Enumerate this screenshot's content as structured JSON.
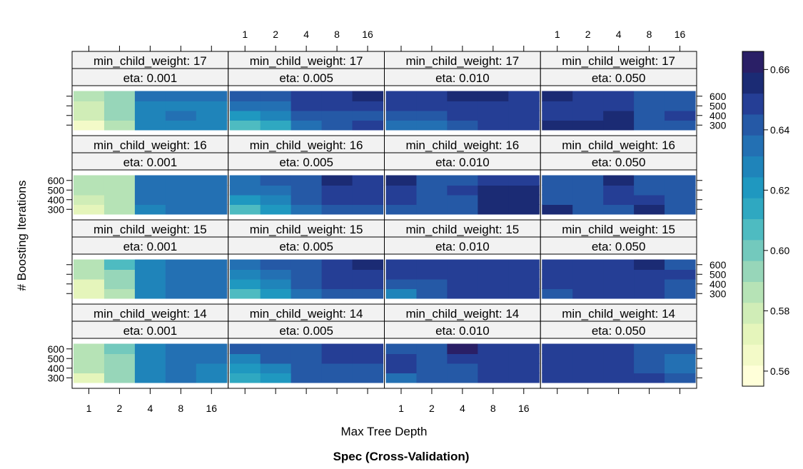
{
  "chart_data": {
    "type": "heatmap",
    "title": "Spec (Cross-Validation)",
    "xlabel": "Max Tree Depth",
    "ylabel": "# Boosting Iterations",
    "x_categories": [
      "1",
      "2",
      "4",
      "8",
      "16"
    ],
    "y_categories": [
      "300",
      "400",
      "500",
      "600"
    ],
    "strip_prefix_weight": "min_child_weight: ",
    "strip_prefix_eta": "eta: ",
    "colorbar": {
      "range": [
        0.555,
        0.666
      ],
      "ticks": [
        0.56,
        0.58,
        0.6,
        0.62,
        0.64,
        0.66
      ],
      "tick_labels": [
        "0.56",
        "0.58",
        "0.60",
        "0.62",
        "0.64",
        "0.66"
      ],
      "colors": [
        "#FFFFD9",
        "#F3FAC8",
        "#E5F5BB",
        "#D0EDB7",
        "#B6E3B6",
        "#97D6B9",
        "#73C9BD",
        "#4EBBC1",
        "#2FA8C1",
        "#1F98C0",
        "#1F84BA",
        "#2370B3",
        "#2559A6",
        "#253E95",
        "#1B2B74",
        "#2A1F66"
      ]
    },
    "panels": [
      {
        "min_child_weight": "17",
        "eta": "0.001",
        "values": [
          [
            0.567,
            0.585,
            0.627,
            0.627,
            0.63
          ],
          [
            0.579,
            0.59,
            0.627,
            0.637,
            0.63
          ],
          [
            0.582,
            0.592,
            0.628,
            0.63,
            0.63
          ],
          [
            0.584,
            0.595,
            0.634,
            0.634,
            0.637
          ]
        ]
      },
      {
        "min_child_weight": "17",
        "eta": "0.005",
        "values": [
          [
            0.604,
            0.615,
            0.635,
            0.645,
            0.651
          ],
          [
            0.62,
            0.626,
            0.641,
            0.641,
            0.645
          ],
          [
            0.634,
            0.634,
            0.646,
            0.646,
            0.648
          ],
          [
            0.643,
            0.643,
            0.648,
            0.648,
            0.654
          ]
        ]
      },
      {
        "min_child_weight": "17",
        "eta": "0.010",
        "values": [
          [
            0.636,
            0.636,
            0.644,
            0.646,
            0.646
          ],
          [
            0.644,
            0.644,
            0.65,
            0.65,
            0.65
          ],
          [
            0.646,
            0.646,
            0.65,
            0.65,
            0.65
          ],
          [
            0.647,
            0.647,
            0.654,
            0.654,
            0.65
          ]
        ]
      },
      {
        "min_child_weight": "17",
        "eta": "0.050",
        "values": [
          [
            0.654,
            0.654,
            0.654,
            0.64,
            0.64
          ],
          [
            0.646,
            0.646,
            0.654,
            0.64,
            0.648
          ],
          [
            0.648,
            0.646,
            0.646,
            0.64,
            0.64
          ],
          [
            0.654,
            0.648,
            0.646,
            0.64,
            0.64
          ]
        ]
      },
      {
        "min_child_weight": "16",
        "eta": "0.001",
        "values": [
          [
            0.571,
            0.585,
            0.629,
            0.635,
            0.635
          ],
          [
            0.58,
            0.587,
            0.635,
            0.635,
            0.635
          ],
          [
            0.585,
            0.586,
            0.635,
            0.635,
            0.635
          ],
          [
            0.589,
            0.589,
            0.635,
            0.635,
            0.635
          ]
        ]
      },
      {
        "min_child_weight": "16",
        "eta": "0.005",
        "values": [
          [
            0.609,
            0.618,
            0.633,
            0.643,
            0.643
          ],
          [
            0.622,
            0.631,
            0.641,
            0.647,
            0.647
          ],
          [
            0.633,
            0.637,
            0.643,
            0.649,
            0.649
          ],
          [
            0.636,
            0.64,
            0.645,
            0.654,
            0.649
          ]
        ]
      },
      {
        "min_child_weight": "16",
        "eta": "0.010",
        "values": [
          [
            0.642,
            0.642,
            0.645,
            0.654,
            0.654
          ],
          [
            0.648,
            0.642,
            0.645,
            0.654,
            0.654
          ],
          [
            0.648,
            0.642,
            0.648,
            0.654,
            0.654
          ],
          [
            0.654,
            0.642,
            0.642,
            0.648,
            0.648
          ]
        ]
      },
      {
        "min_child_weight": "16",
        "eta": "0.050",
        "values": [
          [
            0.654,
            0.644,
            0.644,
            0.654,
            0.641
          ],
          [
            0.644,
            0.644,
            0.65,
            0.648,
            0.641
          ],
          [
            0.644,
            0.644,
            0.648,
            0.644,
            0.641
          ],
          [
            0.644,
            0.644,
            0.654,
            0.644,
            0.641
          ]
        ]
      },
      {
        "min_child_weight": "15",
        "eta": "0.001",
        "values": [
          [
            0.57,
            0.587,
            0.63,
            0.635,
            0.635
          ],
          [
            0.572,
            0.59,
            0.63,
            0.635,
            0.635
          ],
          [
            0.588,
            0.596,
            0.63,
            0.635,
            0.635
          ],
          [
            0.587,
            0.604,
            0.63,
            0.635,
            0.635
          ]
        ]
      },
      {
        "min_child_weight": "15",
        "eta": "0.005",
        "values": [
          [
            0.61,
            0.622,
            0.635,
            0.64,
            0.64
          ],
          [
            0.622,
            0.628,
            0.64,
            0.646,
            0.646
          ],
          [
            0.63,
            0.635,
            0.642,
            0.646,
            0.646
          ],
          [
            0.636,
            0.645,
            0.644,
            0.65,
            0.654
          ]
        ]
      },
      {
        "min_child_weight": "15",
        "eta": "0.010",
        "values": [
          [
            0.631,
            0.641,
            0.647,
            0.647,
            0.647
          ],
          [
            0.645,
            0.645,
            0.65,
            0.65,
            0.65
          ],
          [
            0.647,
            0.647,
            0.652,
            0.652,
            0.652
          ],
          [
            0.647,
            0.647,
            0.652,
            0.652,
            0.652
          ]
        ]
      },
      {
        "min_child_weight": "15",
        "eta": "0.050",
        "values": [
          [
            0.644,
            0.652,
            0.648,
            0.648,
            0.64
          ],
          [
            0.652,
            0.652,
            0.648,
            0.648,
            0.64
          ],
          [
            0.652,
            0.652,
            0.648,
            0.648,
            0.646
          ],
          [
            0.652,
            0.652,
            0.648,
            0.654,
            0.64
          ]
        ]
      },
      {
        "min_child_weight": "14",
        "eta": "0.001",
        "values": [
          [
            0.572,
            0.59,
            0.63,
            0.635,
            0.63
          ],
          [
            0.583,
            0.59,
            0.63,
            0.635,
            0.63
          ],
          [
            0.585,
            0.59,
            0.63,
            0.635,
            0.635
          ],
          [
            0.586,
            0.6,
            0.63,
            0.635,
            0.635
          ]
        ]
      },
      {
        "min_child_weight": "14",
        "eta": "0.005",
        "values": [
          [
            0.612,
            0.622,
            0.64,
            0.64,
            0.64
          ],
          [
            0.622,
            0.63,
            0.64,
            0.64,
            0.64
          ],
          [
            0.63,
            0.64,
            0.644,
            0.648,
            0.648
          ],
          [
            0.64,
            0.64,
            0.644,
            0.652,
            0.652
          ]
        ]
      },
      {
        "min_child_weight": "14",
        "eta": "0.010",
        "values": [
          [
            0.636,
            0.64,
            0.645,
            0.652,
            0.652
          ],
          [
            0.648,
            0.64,
            0.645,
            0.652,
            0.652
          ],
          [
            0.652,
            0.645,
            0.652,
            0.652,
            0.652
          ],
          [
            0.645,
            0.645,
            0.664,
            0.652,
            0.652
          ]
        ]
      },
      {
        "min_child_weight": "14",
        "eta": "0.050",
        "values": [
          [
            0.652,
            0.652,
            0.648,
            0.646,
            0.64
          ],
          [
            0.652,
            0.652,
            0.648,
            0.641,
            0.635
          ],
          [
            0.652,
            0.652,
            0.648,
            0.641,
            0.632
          ],
          [
            0.652,
            0.652,
            0.648,
            0.641,
            0.641
          ]
        ]
      }
    ]
  }
}
